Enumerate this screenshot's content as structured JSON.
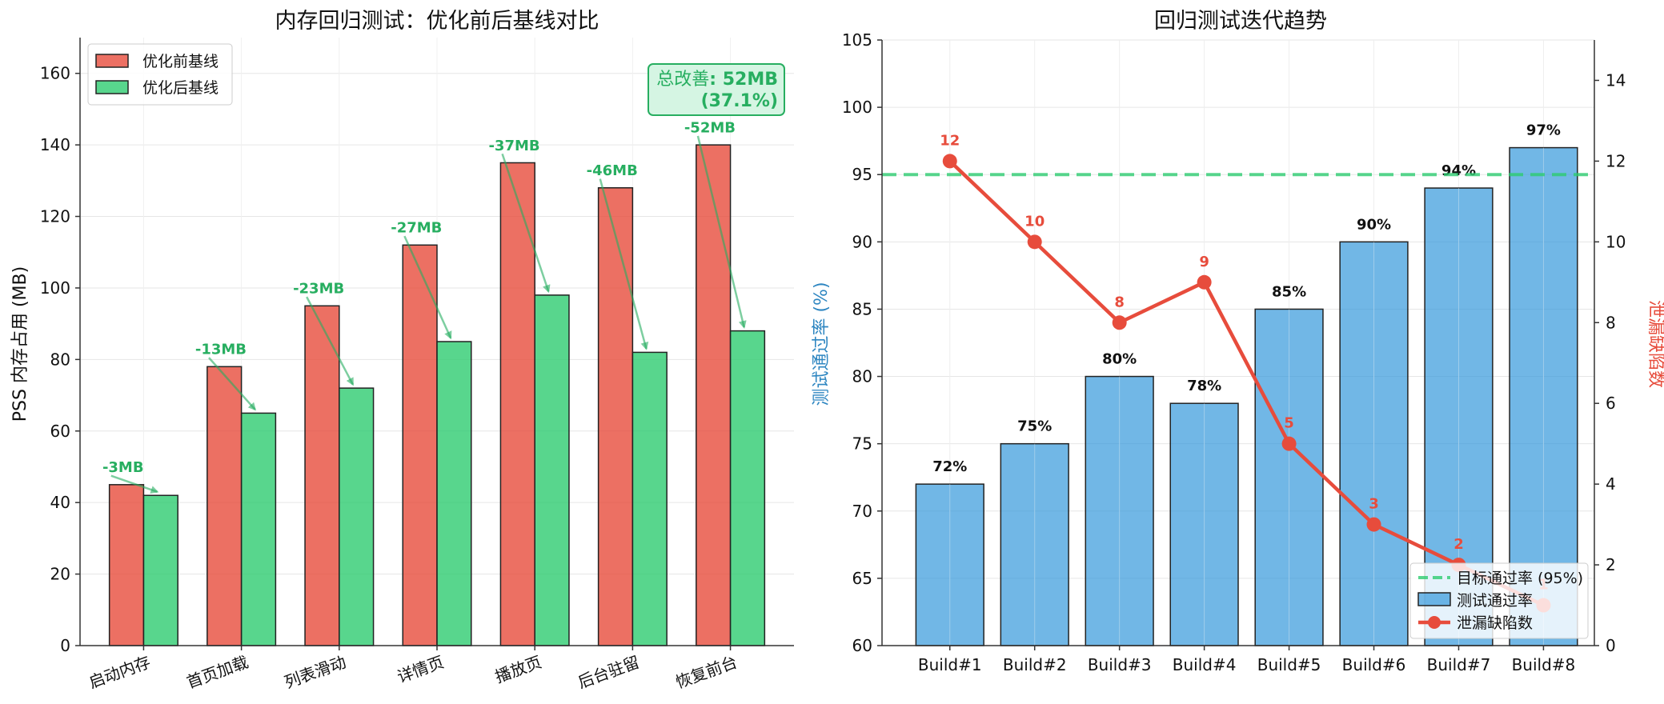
{
  "chart_data": [
    {
      "type": "bar",
      "title": "内存回归测试：优化前后基线对比",
      "xlabel": "",
      "ylabel": "PSS 内存占用 (MB)",
      "ylim": [
        0,
        170
      ],
      "yticks": [
        0,
        20,
        40,
        60,
        80,
        100,
        120,
        140,
        160
      ],
      "categories": [
        "启动内存",
        "首页加载",
        "列表滑动",
        "详情页",
        "播放页",
        "后台驻留",
        "恢复前台"
      ],
      "series": [
        {
          "name": "优化前基线",
          "values": [
            45,
            78,
            95,
            112,
            135,
            128,
            140
          ],
          "color": "#e74c3c"
        },
        {
          "name": "优化后基线",
          "values": [
            42,
            65,
            72,
            85,
            98,
            82,
            88
          ],
          "color": "#2ecc71"
        }
      ],
      "reduction_labels": [
        "-3MB",
        "-13MB",
        "-23MB",
        "-27MB",
        "-37MB",
        "-46MB",
        "-52MB"
      ],
      "summary": {
        "prefix": "总改善",
        "line1": ": 52MB",
        "line2": "(37.1%)"
      },
      "legend": "top-left",
      "grid": true
    },
    {
      "type": "bar+line",
      "title": "回归测试迭代趋势",
      "xlabel": "",
      "ylabel": "测试通过率 (%)",
      "ylabel_right": "泄漏缺陷数",
      "ylim": [
        60,
        105
      ],
      "yticks": [
        60,
        65,
        70,
        75,
        80,
        85,
        90,
        95,
        100,
        105
      ],
      "ylim_right": [
        0,
        15
      ],
      "yticks_right": [
        0,
        2,
        4,
        6,
        8,
        10,
        12,
        14
      ],
      "categories": [
        "Build#1",
        "Build#2",
        "Build#3",
        "Build#4",
        "Build#5",
        "Build#6",
        "Build#7",
        "Build#8"
      ],
      "bar_series": {
        "name": "测试通过率",
        "values": [
          72,
          75,
          80,
          78,
          85,
          90,
          94,
          97
        ],
        "labels": [
          "72%",
          "75%",
          "80%",
          "78%",
          "85%",
          "90%",
          "94%",
          "97%"
        ],
        "color": "#3498db"
      },
      "line_series": {
        "name": "泄漏缺陷数",
        "values": [
          12,
          10,
          8,
          9,
          5,
          3,
          2,
          1
        ],
        "labels": [
          "12",
          "10",
          "8",
          "9",
          "5",
          "3",
          "2",
          "1"
        ],
        "color": "#e74c3c"
      },
      "target": {
        "name": "目标通过率 (95%)",
        "value": 95,
        "color": "#2ecc71"
      },
      "legend": "bottom-right",
      "grid": true
    }
  ]
}
